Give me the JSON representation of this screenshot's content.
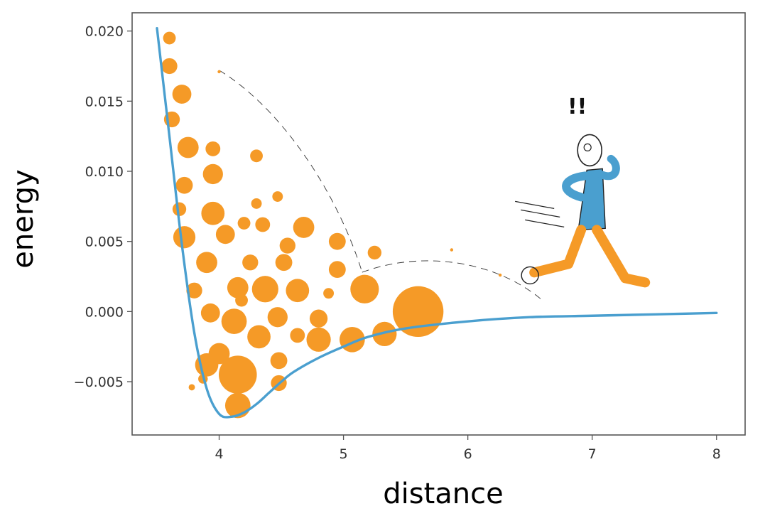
{
  "chart_data": {
    "type": "line",
    "xlabel": "distance",
    "ylabel": "energy",
    "xlim": [
      3.3,
      8.23
    ],
    "ylim": [
      -0.0088,
      0.0213
    ],
    "x_ticks": [
      4,
      5,
      6,
      7,
      8
    ],
    "x_tick_labels": [
      "4",
      "5",
      "6",
      "7",
      "8"
    ],
    "y_ticks": [
      -0.005,
      0.0,
      0.005,
      0.01,
      0.015,
      0.02
    ],
    "y_tick_labels": [
      "−0.005",
      "0.000",
      "0.005",
      "0.010",
      "0.015",
      "0.020"
    ],
    "grid": false,
    "series": [
      {
        "color": "#4a9fcf",
        "x": [
          3.5,
          3.6,
          3.7,
          3.8,
          3.9,
          4.0,
          4.1,
          4.2,
          4.3,
          4.4,
          4.5,
          4.6,
          4.8,
          5.0,
          5.2,
          5.5,
          6.0,
          6.5,
          7.0,
          7.5,
          8.0
        ],
        "y": [
          0.0202,
          0.0125,
          0.0048,
          -0.0015,
          -0.0055,
          -0.0073,
          -0.0075,
          -0.0072,
          -0.0066,
          -0.0058,
          -0.005,
          -0.0043,
          -0.0033,
          -0.0025,
          -0.0018,
          -0.0012,
          -0.0007,
          -0.0004,
          -0.0003,
          -0.0002,
          -0.0001
        ]
      }
    ],
    "annotations": [
      {
        "type": "text",
        "text": "!!",
        "x": 6.88,
        "y": 0.0141
      }
    ],
    "decoration": {
      "bubble_color": "#f59a27",
      "person_shirt_color": "#4a9fcf",
      "person_pants_color": "#f59a27",
      "bubbles": [
        [
          3.6,
          0.0195,
          0.6
        ],
        [
          3.6,
          0.0175,
          0.75
        ],
        [
          3.7,
          0.0155,
          0.9
        ],
        [
          3.62,
          0.0137,
          0.75
        ],
        [
          3.75,
          0.0117,
          1.0
        ],
        [
          3.95,
          0.0116,
          0.7
        ],
        [
          4.3,
          0.0111,
          0.6
        ],
        [
          3.72,
          0.009,
          0.8
        ],
        [
          3.95,
          0.0098,
          0.95
        ],
        [
          3.68,
          0.0073,
          0.65
        ],
        [
          3.95,
          0.007,
          1.1
        ],
        [
          4.47,
          0.0082,
          0.5
        ],
        [
          4.3,
          0.0077,
          0.5
        ],
        [
          3.72,
          0.0053,
          1.05
        ],
        [
          4.05,
          0.0055,
          0.9
        ],
        [
          4.2,
          0.0063,
          0.6
        ],
        [
          4.35,
          0.0062,
          0.7
        ],
        [
          4.68,
          0.006,
          1.0
        ],
        [
          4.55,
          0.0047,
          0.75
        ],
        [
          4.95,
          0.005,
          0.8
        ],
        [
          3.9,
          0.0035,
          1.0
        ],
        [
          4.25,
          0.0035,
          0.75
        ],
        [
          4.52,
          0.0035,
          0.8
        ],
        [
          4.95,
          0.003,
          0.8
        ],
        [
          5.25,
          0.0042,
          0.65
        ],
        [
          3.8,
          0.0015,
          0.75
        ],
        [
          4.15,
          0.0017,
          1.0
        ],
        [
          4.37,
          0.0016,
          1.25
        ],
        [
          4.63,
          0.0015,
          1.1
        ],
        [
          4.88,
          0.0013,
          0.5
        ],
        [
          5.17,
          0.0016,
          1.35
        ],
        [
          4.18,
          0.0008,
          0.6
        ],
        [
          3.93,
          -0.0001,
          0.9
        ],
        [
          4.12,
          -0.0007,
          1.2
        ],
        [
          4.47,
          -0.0004,
          0.95
        ],
        [
          4.8,
          -0.0005,
          0.85
        ],
        [
          5.6,
          0.0,
          2.4
        ],
        [
          4.32,
          -0.0018,
          1.1
        ],
        [
          4.63,
          -0.0017,
          0.7
        ],
        [
          4.8,
          -0.002,
          1.15
        ],
        [
          5.07,
          -0.002,
          1.2
        ],
        [
          5.33,
          -0.0016,
          1.15
        ],
        [
          4.0,
          -0.003,
          1.0
        ],
        [
          3.9,
          -0.0038,
          1.1
        ],
        [
          4.15,
          -0.0045,
          1.8
        ],
        [
          4.48,
          -0.0035,
          0.8
        ],
        [
          3.87,
          -0.0048,
          0.45
        ],
        [
          4.48,
          -0.0051,
          0.75
        ],
        [
          3.78,
          -0.0054,
          0.3
        ],
        [
          4.15,
          -0.0067,
          1.2
        ]
      ]
    }
  }
}
